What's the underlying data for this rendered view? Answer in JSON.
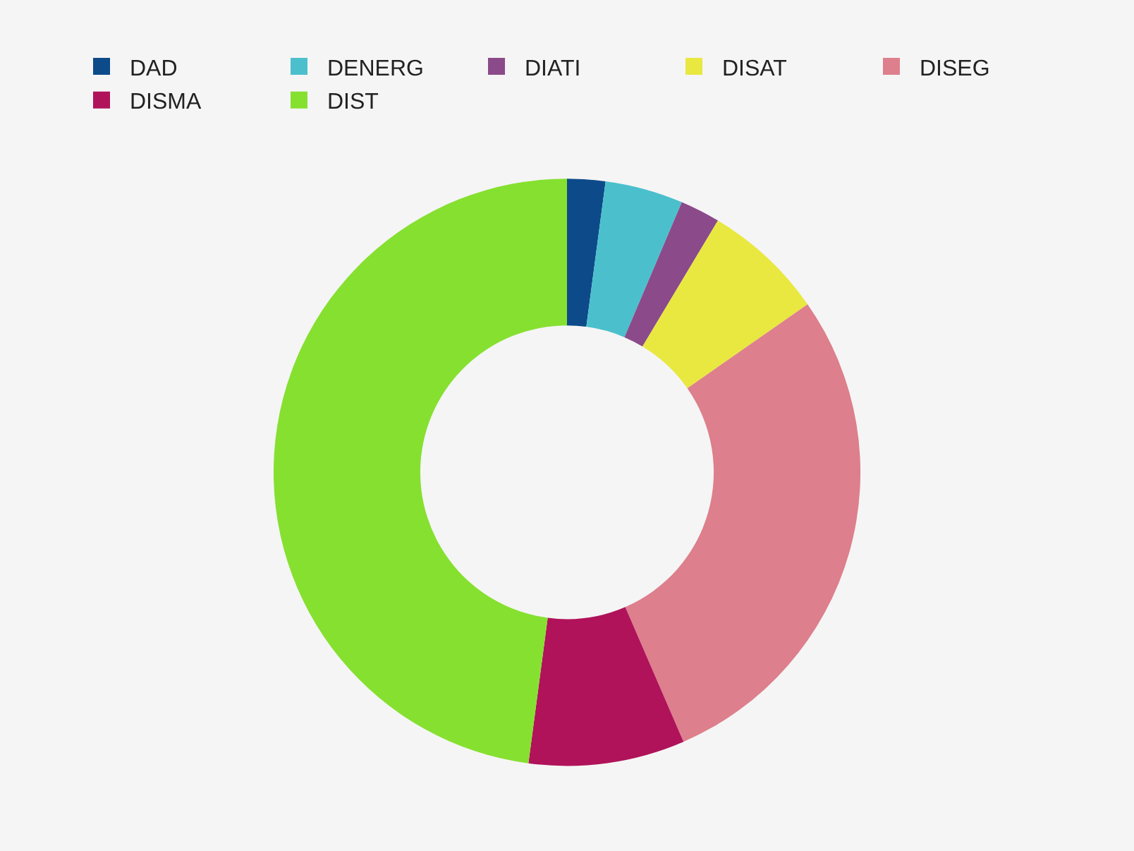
{
  "chart_data": {
    "type": "donut",
    "categories": [
      "DAD",
      "DENERG",
      "DIATI",
      "DISAT",
      "DISEG",
      "DISMA",
      "DIST"
    ],
    "values": [
      2.1,
      4.3,
      2.2,
      6.7,
      28.2,
      8.6,
      47.9
    ],
    "colors": [
      "#0d4a8a",
      "#4bc0cc",
      "#8b4a8a",
      "#e8e840",
      "#dd7f8c",
      "#b0135a",
      "#86e030"
    ],
    "legend": "top"
  }
}
